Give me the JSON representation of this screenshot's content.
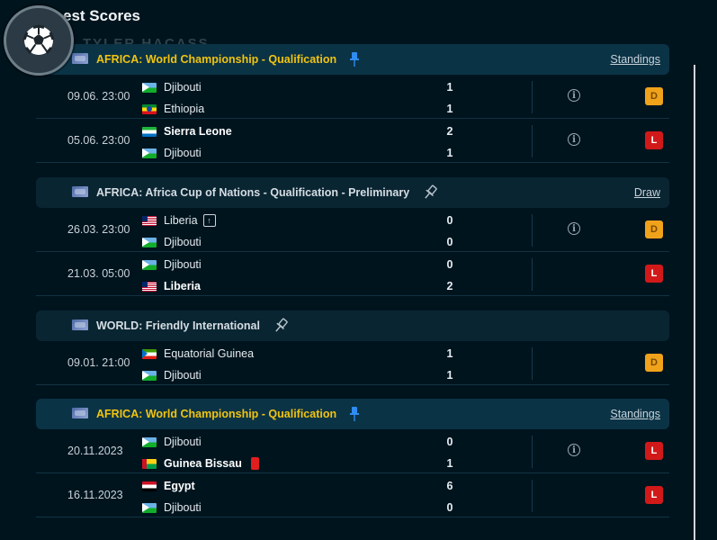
{
  "page": {
    "title": "est Scores",
    "watermark": "TYLER.HACASS"
  },
  "colors": {
    "background": "#00141e",
    "highlight_header": "#0b3346",
    "competition_highlight_text": "#f1c40f",
    "draw_badge": "#f0a21b",
    "loss_badge": "#d21919"
  },
  "sections": [
    {
      "competition": "AFRICA: World Championship - Qualification",
      "link": "Standings",
      "highlighted": true,
      "pin_icon": "pin-filled-icon",
      "matches": [
        {
          "date": "09.06. 23:00",
          "home": "Djibouti",
          "away": "Ethiopia",
          "home_score": "1",
          "away_score": "1",
          "result": "D",
          "has_info": true
        },
        {
          "date": "05.06. 23:00",
          "home": "Sierra Leone",
          "away": "Djibouti",
          "home_score": "2",
          "away_score": "1",
          "result": "L",
          "has_info": true
        }
      ]
    },
    {
      "competition": "AFRICA: Africa Cup of Nations - Qualification - Preliminary",
      "link": "Draw",
      "highlighted": false,
      "pin_icon": "pin-outline-icon",
      "matches": [
        {
          "date": "26.03. 23:00",
          "home": "Liberia",
          "away": "Djibouti",
          "home_score": "0",
          "away_score": "0",
          "result": "D",
          "has_info": true
        },
        {
          "date": "21.03. 05:00",
          "home": "Djibouti",
          "away": "Liberia",
          "home_score": "0",
          "away_score": "2",
          "result": "L",
          "has_info": false
        }
      ]
    },
    {
      "competition": "WORLD: Friendly International",
      "link": "",
      "highlighted": false,
      "pin_icon": "pin-outline-icon",
      "matches": [
        {
          "date": "09.01. 21:00",
          "home": "Equatorial Guinea",
          "away": "Djibouti",
          "home_score": "1",
          "away_score": "1",
          "result": "D",
          "has_info": false
        }
      ]
    },
    {
      "competition": "AFRICA: World Championship - Qualification",
      "link": "Standings",
      "highlighted": true,
      "pin_icon": "pin-filled-icon",
      "matches": [
        {
          "date": "20.11.2023",
          "home": "Djibouti",
          "away": "Guinea Bissau",
          "home_score": "0",
          "away_score": "1",
          "result": "L",
          "has_info": true
        },
        {
          "date": "16.11.2023",
          "home": "Egypt",
          "away": "Djibouti",
          "home_score": "6",
          "away_score": "0",
          "result": "L",
          "has_info": false
        }
      ]
    }
  ]
}
